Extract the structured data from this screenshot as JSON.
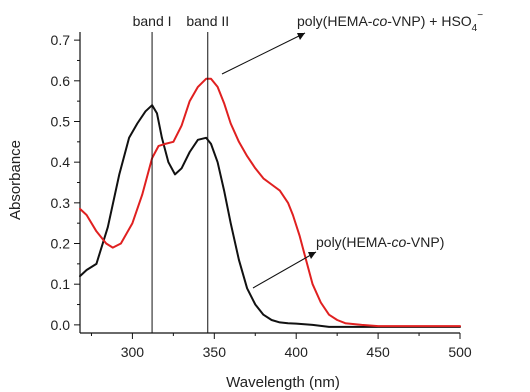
{
  "chart_data": {
    "type": "line",
    "xlabel": "Wavelength (nm)",
    "ylabel": "Absorbance",
    "xlim": [
      268,
      500
    ],
    "ylim": [
      -0.02,
      0.72
    ],
    "x_ticks": [
      "300",
      "350",
      "400",
      "450",
      "500"
    ],
    "x_tick_values": [
      300,
      350,
      400,
      450,
      500
    ],
    "y_ticks": [
      "0.0",
      "0.1",
      "0.2",
      "0.3",
      "0.4",
      "0.5",
      "0.6",
      "0.7"
    ],
    "y_tick_values": [
      0.0,
      0.1,
      0.2,
      0.3,
      0.4,
      0.5,
      0.6,
      0.7
    ],
    "series": [
      {
        "name": "poly(HEMA-co-VNP)",
        "color": "#111111",
        "x": [
          268,
          272,
          278,
          285,
          292,
          298,
          303,
          308,
          312,
          315,
          318,
          322,
          326,
          330,
          335,
          340,
          345,
          348,
          352,
          356,
          360,
          365,
          370,
          375,
          380,
          385,
          390,
          395,
          400,
          410,
          420,
          440,
          460,
          480,
          500
        ],
        "y": [
          0.12,
          0.135,
          0.15,
          0.24,
          0.37,
          0.46,
          0.495,
          0.525,
          0.54,
          0.52,
          0.46,
          0.4,
          0.37,
          0.385,
          0.425,
          0.455,
          0.46,
          0.445,
          0.4,
          0.33,
          0.25,
          0.16,
          0.09,
          0.05,
          0.025,
          0.012,
          0.006,
          0.004,
          0.003,
          0.0,
          -0.005,
          -0.005,
          -0.005,
          -0.005,
          -0.005
        ]
      },
      {
        "name": "poly(HEMA-co-VNP) + HSO4-",
        "color": "#e02020",
        "x": [
          268,
          272,
          278,
          284,
          288,
          293,
          300,
          306,
          312,
          316,
          320,
          325,
          330,
          335,
          340,
          345,
          348,
          352,
          356,
          360,
          365,
          370,
          375,
          380,
          385,
          390,
          395,
          398,
          402,
          406,
          410,
          415,
          420,
          425,
          430,
          440,
          450,
          470,
          500
        ],
        "y": [
          0.285,
          0.27,
          0.23,
          0.2,
          0.19,
          0.2,
          0.25,
          0.32,
          0.41,
          0.44,
          0.445,
          0.45,
          0.49,
          0.55,
          0.585,
          0.605,
          0.605,
          0.585,
          0.545,
          0.495,
          0.45,
          0.415,
          0.385,
          0.36,
          0.345,
          0.33,
          0.3,
          0.27,
          0.22,
          0.16,
          0.1,
          0.055,
          0.025,
          0.012,
          0.004,
          0.0,
          -0.003,
          -0.003,
          -0.003
        ]
      }
    ],
    "annotations": [
      {
        "text": "band I",
        "x": 312
      },
      {
        "text": "band II",
        "x": 346
      }
    ],
    "labels": {
      "black_label_main": "poly(HEMA-",
      "black_label_italic": "co",
      "black_label_end": "-VNP)",
      "red_label_main": "poly(HEMA-",
      "red_label_italic": "co",
      "red_label_end": "-VNP) + HSO",
      "red_label_sub": "4",
      "red_label_sup": "−"
    }
  }
}
